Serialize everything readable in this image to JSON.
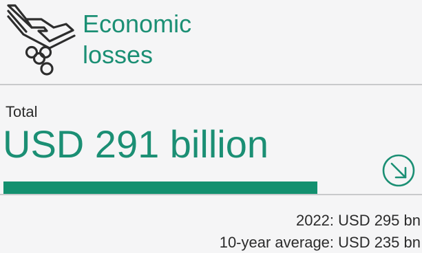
{
  "header": {
    "title_line1": "Economic",
    "title_line2": "losses",
    "icon": "hand-coins-icon"
  },
  "total": {
    "label": "Total",
    "value": "USD 291 billion",
    "bar_fill_fraction": 0.75,
    "trend_icon": "arrow-down-right-icon"
  },
  "stats": {
    "line1": "2022: USD 295 bn",
    "line2": "10-year average: USD 235 bn"
  },
  "colors": {
    "accent": "#1b8f74",
    "bar": "#13906f",
    "text": "#2b2b2b",
    "divider": "#c8c9cb",
    "background": "#f5f5f6"
  }
}
